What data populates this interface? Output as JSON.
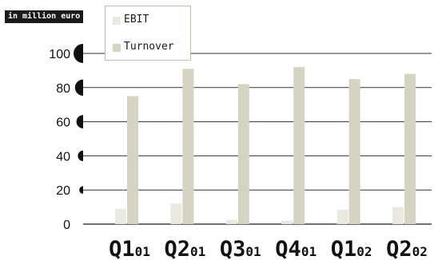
{
  "chart_data": {
    "type": "bar",
    "unit_label": "in million euro",
    "categories": [
      {
        "main": "Q1",
        "sub": "01"
      },
      {
        "main": "Q2",
        "sub": "01"
      },
      {
        "main": "Q3",
        "sub": "01"
      },
      {
        "main": "Q4",
        "sub": "01"
      },
      {
        "main": "Q1",
        "sub": "02"
      },
      {
        "main": "Q2",
        "sub": "02"
      }
    ],
    "series": [
      {
        "name": "EBIT",
        "color": "#e9e9df",
        "values": [
          9,
          12,
          2.5,
          2,
          8.5,
          10
        ]
      },
      {
        "name": "Turnover",
        "color": "#d5d3c1",
        "values": [
          75,
          91,
          82,
          92,
          85,
          88
        ]
      }
    ],
    "yticks": [
      0,
      20,
      40,
      60,
      80,
      100
    ],
    "ylim": [
      0,
      100
    ],
    "grid": true,
    "legend_position": "top-left"
  }
}
